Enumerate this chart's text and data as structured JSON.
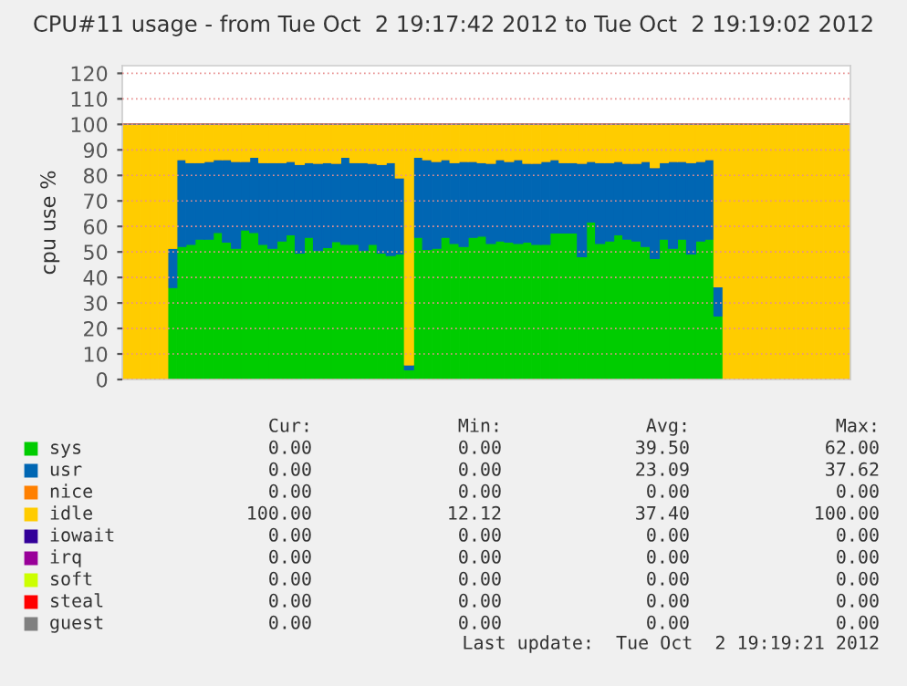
{
  "chart_data": {
    "type": "bar",
    "stacked": true,
    "title": "CPU#11 usage - from Tue Oct  2 19:17:42 2012 to Tue Oct  2 19:19:02 2012",
    "ylabel": "cpu use %",
    "categories": [
      null,
      null,
      null,
      null,
      null,
      null,
      null,
      null,
      null,
      null,
      null,
      null,
      null,
      null,
      null,
      null,
      null,
      null,
      null,
      null,
      null,
      null,
      null,
      null,
      null,
      null,
      null,
      null,
      null,
      null,
      null,
      null,
      null,
      null,
      null,
      null,
      null,
      null,
      null,
      null,
      null,
      null,
      null,
      null,
      null,
      null,
      null,
      null,
      null,
      null,
      null,
      null,
      null,
      null,
      null,
      null,
      null,
      null,
      null,
      null,
      null,
      null,
      null,
      null,
      null,
      null,
      null,
      null,
      null,
      null,
      null,
      null,
      null,
      null,
      null,
      null,
      null,
      null,
      null,
      null
    ],
    "series": [
      {
        "name": "sys",
        "color": "#00cc00",
        "values": [
          0,
          0,
          0,
          0,
          0,
          36,
          52.1,
          52.9,
          55,
          55,
          57.6,
          53.8,
          51.4,
          58.6,
          57.6,
          52.9,
          51.4,
          54.3,
          56.7,
          49.5,
          55.7,
          50.5,
          51.7,
          54,
          52.9,
          52.9,
          50.5,
          52.9,
          49.5,
          48.6,
          49.2,
          3.8,
          55.7,
          51,
          51.4,
          55.7,
          53.3,
          52.1,
          55.7,
          56.2,
          53.3,
          54.3,
          53.8,
          53.3,
          53.8,
          52.9,
          52.9,
          57.4,
          57.4,
          57.4,
          48.1,
          61.7,
          53.3,
          54.3,
          56.7,
          55,
          54.3,
          52.1,
          47.4,
          55,
          51.4,
          55,
          49.2,
          54.3,
          55,
          24.9,
          0,
          0,
          0,
          0,
          0,
          0,
          0,
          0,
          0,
          0,
          0,
          0,
          0,
          0
        ]
      },
      {
        "name": "usr",
        "color": "#0066b3",
        "values": [
          0,
          0,
          0,
          0,
          0,
          15.4,
          34.1,
          32.1,
          30,
          30.5,
          28.6,
          32.4,
          34.1,
          26.9,
          29.5,
          32.1,
          33.6,
          30.7,
          28.8,
          34.8,
          29.3,
          34.3,
          33.3,
          30.8,
          34.2,
          32.1,
          34.5,
          31.9,
          34.8,
          36.4,
          29.8,
          1.9,
          31.4,
          35.2,
          34.1,
          30.5,
          31.7,
          33.4,
          29.8,
          28.8,
          31.5,
          31.9,
          31.7,
          32.9,
          31,
          31.9,
          32.6,
          28.8,
          27.6,
          27.6,
          36.7,
          23.8,
          31.7,
          30.7,
          28.8,
          29.8,
          30.5,
          33.4,
          35.7,
          30,
          34.1,
          30.5,
          35.8,
          31.2,
          31.2,
          11.4,
          0,
          0,
          0,
          0,
          0,
          0,
          0,
          0,
          0,
          0,
          0,
          0,
          0,
          0
        ]
      },
      {
        "name": "nice",
        "color": "#ff8000",
        "values": [
          0,
          0,
          0,
          0,
          0,
          0,
          0,
          0,
          0,
          0,
          0,
          0,
          0,
          0,
          0,
          0,
          0,
          0,
          0,
          0,
          0,
          0,
          0,
          0,
          0,
          0,
          0,
          0,
          0,
          0,
          0,
          0,
          0,
          0,
          0,
          0,
          0,
          0,
          0,
          0,
          0,
          0,
          0,
          0,
          0,
          0,
          0,
          0,
          0,
          0,
          0,
          0,
          0,
          0,
          0,
          0,
          0,
          0,
          0,
          0,
          0,
          0,
          0,
          0,
          0,
          0,
          0,
          0,
          0,
          0,
          0,
          0,
          0,
          0,
          0,
          0,
          0,
          0,
          0,
          0
        ]
      },
      {
        "name": "idle",
        "color": "#ffcc00",
        "values": [
          100,
          100,
          100,
          100,
          100,
          48.6,
          13.8,
          15,
          15,
          14.5,
          13.8,
          13.8,
          14.5,
          14.5,
          12.9,
          15,
          15,
          15,
          14.5,
          15.7,
          15,
          15.2,
          15,
          15.2,
          12.9,
          15,
          15,
          15.2,
          15.7,
          15,
          21,
          94.3,
          12.9,
          13.8,
          14.5,
          13.8,
          15,
          14.5,
          14.5,
          15,
          15.2,
          13.8,
          14.5,
          13.8,
          15.2,
          15.2,
          14.5,
          13.8,
          15,
          15,
          15.2,
          14.5,
          15,
          15,
          14.5,
          15.2,
          15.2,
          14.5,
          16.9,
          15,
          14.5,
          14.5,
          15,
          14.5,
          13.8,
          63.7,
          100,
          100,
          100,
          100,
          100,
          100,
          100,
          100,
          100,
          100,
          100,
          100,
          100,
          100
        ]
      },
      {
        "name": "iowait",
        "color": "#330099",
        "values": [
          0,
          0,
          0,
          0,
          0,
          0,
          0,
          0,
          0,
          0,
          0,
          0,
          0,
          0,
          0,
          0,
          0,
          0,
          0,
          0,
          0,
          0,
          0,
          0,
          0,
          0,
          0,
          0,
          0,
          0,
          0,
          0,
          0,
          0,
          0,
          0,
          0,
          0,
          0,
          0,
          0,
          0,
          0,
          0,
          0,
          0,
          0,
          0,
          0,
          0,
          0,
          0,
          0,
          0,
          0,
          0,
          0,
          0,
          0,
          0,
          0,
          0,
          0,
          0,
          0,
          0,
          0,
          0,
          0,
          0,
          0,
          0,
          0,
          0,
          0,
          0,
          0,
          0,
          0,
          0
        ]
      },
      {
        "name": "irq",
        "color": "#990099",
        "values": [
          0,
          0,
          0,
          0,
          0,
          0,
          0,
          0,
          0,
          0,
          0,
          0,
          0,
          0,
          0,
          0,
          0,
          0,
          0,
          0,
          0,
          0,
          0,
          0,
          0,
          0,
          0,
          0,
          0,
          0,
          0,
          0,
          0,
          0,
          0,
          0,
          0,
          0,
          0,
          0,
          0,
          0,
          0,
          0,
          0,
          0,
          0,
          0,
          0,
          0,
          0,
          0,
          0,
          0,
          0,
          0,
          0,
          0,
          0,
          0,
          0,
          0,
          0,
          0,
          0,
          0,
          0,
          0,
          0,
          0,
          0,
          0,
          0,
          0,
          0,
          0,
          0,
          0,
          0,
          0
        ]
      },
      {
        "name": "soft",
        "color": "#ccff00",
        "values": [
          0,
          0,
          0,
          0,
          0,
          0,
          0,
          0,
          0,
          0,
          0,
          0,
          0,
          0,
          0,
          0,
          0,
          0,
          0,
          0,
          0,
          0,
          0,
          0,
          0,
          0,
          0,
          0,
          0,
          0,
          0,
          0,
          0,
          0,
          0,
          0,
          0,
          0,
          0,
          0,
          0,
          0,
          0,
          0,
          0,
          0,
          0,
          0,
          0,
          0,
          0,
          0,
          0,
          0,
          0,
          0,
          0,
          0,
          0,
          0,
          0,
          0,
          0,
          0,
          0,
          0,
          0,
          0,
          0,
          0,
          0,
          0,
          0,
          0,
          0,
          0,
          0,
          0,
          0,
          0
        ]
      },
      {
        "name": "steal",
        "color": "#ff0000",
        "values": [
          0,
          0,
          0,
          0,
          0,
          0,
          0,
          0,
          0,
          0,
          0,
          0,
          0,
          0,
          0,
          0,
          0,
          0,
          0,
          0,
          0,
          0,
          0,
          0,
          0,
          0,
          0,
          0,
          0,
          0,
          0,
          0,
          0,
          0,
          0,
          0,
          0,
          0,
          0,
          0,
          0,
          0,
          0,
          0,
          0,
          0,
          0,
          0,
          0,
          0,
          0,
          0,
          0,
          0,
          0,
          0,
          0,
          0,
          0,
          0,
          0,
          0,
          0,
          0,
          0,
          0,
          0,
          0,
          0,
          0,
          0,
          0,
          0,
          0,
          0,
          0,
          0,
          0,
          0,
          0
        ]
      },
      {
        "name": "guest",
        "color": "#808080",
        "values": [
          0,
          0,
          0,
          0,
          0,
          0,
          0,
          0,
          0,
          0,
          0,
          0,
          0,
          0,
          0,
          0,
          0,
          0,
          0,
          0,
          0,
          0,
          0,
          0,
          0,
          0,
          0,
          0,
          0,
          0,
          0,
          0,
          0,
          0,
          0,
          0,
          0,
          0,
          0,
          0,
          0,
          0,
          0,
          0,
          0,
          0,
          0,
          0,
          0,
          0,
          0,
          0,
          0,
          0,
          0,
          0,
          0,
          0,
          0,
          0,
          0,
          0,
          0,
          0,
          0,
          0,
          0,
          0,
          0,
          0,
          0,
          0,
          0,
          0,
          0,
          0,
          0,
          0,
          0,
          0
        ]
      }
    ],
    "ylim": [
      0,
      123
    ],
    "yticks": [
      0,
      10,
      20,
      30,
      40,
      50,
      60,
      70,
      80,
      90,
      100,
      110,
      120
    ],
    "grid": "y",
    "legend": "bottom",
    "annotations": [
      "Cur:",
      "Min:",
      "Avg:",
      "Max:",
      "0.00",
      "0.00",
      "39.50",
      "62.00",
      "0.00",
      "0.00",
      "23.09",
      "37.62",
      "0.00",
      "0.00",
      "0.00",
      "0.00",
      "100.00",
      "12.12",
      "37.40",
      "100.00",
      "0.00",
      "0.00",
      "0.00",
      "0.00",
      "0.00",
      "0.00",
      "0.00",
      "0.00",
      "0.00",
      "0.00",
      "0.00",
      "0.00",
      "0.00",
      "0.00",
      "0.00",
      "0.00",
      "0.00",
      "0.00",
      "0.00",
      "0.00",
      "Last update:  Tue Oct  2 19:19:21 2012"
    ]
  }
}
